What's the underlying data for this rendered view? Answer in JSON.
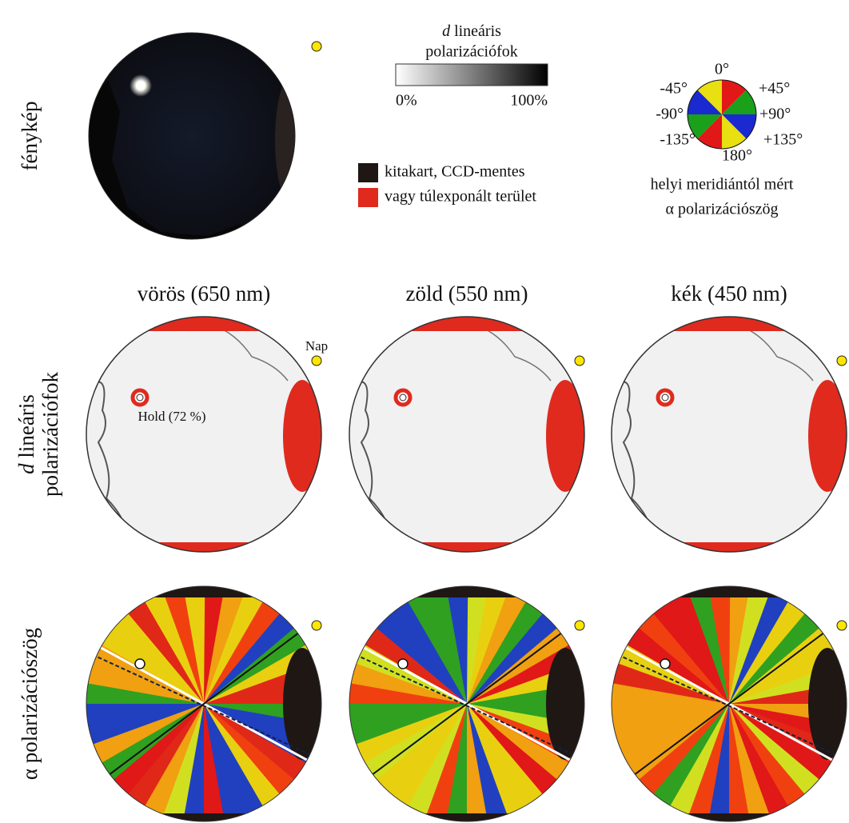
{
  "row_labels": {
    "photo": "fénykép",
    "degree_symbol": "d",
    "degree_lines": [
      "lineáris",
      "polarizációfok"
    ],
    "angle": "α polarizációszög"
  },
  "degree_legend": {
    "symbol": "d",
    "title_lines": [
      "lineáris",
      "polarizációfok"
    ],
    "min_label": "0%",
    "max_label": "100%"
  },
  "mask_legend": [
    "kitakart, CCD-mentes",
    "vagy túlexponált terület"
  ],
  "angle_legend": {
    "labels": {
      "top": "0°",
      "top_right": "+45°",
      "right": "+90°",
      "bottom_right": "+135°",
      "bottom": "180°",
      "bottom_left": "-135°",
      "left": "-90°",
      "top_left": "-45°"
    },
    "caption": [
      "helyi meridiántól mért",
      "α polarizációszög"
    ]
  },
  "columns": [
    "vörös (650 nm)",
    "zöld (550 nm)",
    "kék (450 nm)"
  ],
  "annotations": {
    "sun": "Nap",
    "moon": "Hold (72 %)"
  }
}
